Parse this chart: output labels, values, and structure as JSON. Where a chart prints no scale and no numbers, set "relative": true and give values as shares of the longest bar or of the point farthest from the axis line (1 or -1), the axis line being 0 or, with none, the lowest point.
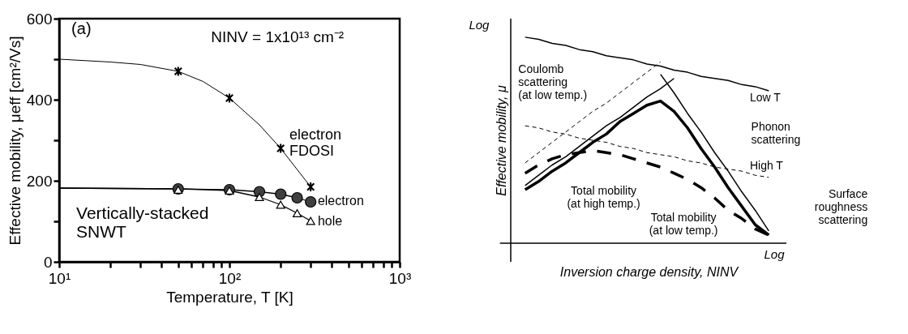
{
  "chart_data": [
    {
      "type": "line",
      "xlabel": "Temperature, T [K]",
      "ylabel": "Effective mobility, μeff [cm²/Vs]",
      "log": "x",
      "xlim": [
        10,
        1000
      ],
      "ylim": [
        0,
        600
      ],
      "xticks": [
        {
          "value": 10,
          "label": "10¹"
        },
        {
          "value": 20,
          "label": null
        },
        {
          "value": 30,
          "label": null
        },
        {
          "value": 40,
          "label": null
        },
        {
          "value": 50,
          "label": null
        },
        {
          "value": 60,
          "label": null
        },
        {
          "value": 70,
          "label": null
        },
        {
          "value": 80,
          "label": null
        },
        {
          "value": 90,
          "label": null
        },
        {
          "value": 100,
          "label": "10²"
        },
        {
          "value": 200,
          "label": null
        },
        {
          "value": 300,
          "label": null
        },
        {
          "value": 400,
          "label": null
        },
        {
          "value": 500,
          "label": null
        },
        {
          "value": 600,
          "label": null
        },
        {
          "value": 700,
          "label": null
        },
        {
          "value": 800,
          "label": null
        },
        {
          "value": 900,
          "label": null
        },
        {
          "value": 1000,
          "label": "10³"
        }
      ],
      "yticks": [
        0,
        {
          "value": 100,
          "label": null
        },
        200,
        {
          "value": 300,
          "label": null
        },
        400,
        {
          "value": 500,
          "label": null
        },
        600
      ],
      "series": [
        {
          "type": "line",
          "color": "#000000",
          "x": [
            10,
            20,
            30,
            50,
            70,
            100,
            150,
            200,
            300
          ],
          "values": [
            500,
            493,
            487,
            470,
            445,
            404,
            338,
            280,
            185
          ]
        },
        {
          "type": "line",
          "color": "#000000",
          "x": [
            10,
            50,
            100,
            150,
            200,
            250,
            300
          ],
          "values": [
            182,
            180,
            178,
            173,
            167,
            158,
            148
          ]
        },
        {
          "type": "line",
          "color": "#000000",
          "x": [
            10,
            50,
            100,
            150,
            200,
            250,
            300
          ],
          "values": [
            182,
            180,
            176,
            160,
            141,
            120,
            101
          ]
        },
        {
          "type": "scatter",
          "marker": "cross",
          "color": "#000000",
          "x": [
            50,
            100,
            200,
            300
          ],
          "values": [
            470,
            404,
            280,
            185
          ]
        },
        {
          "type": "scatter",
          "marker": "circle",
          "color": "#404040",
          "x": [
            50,
            100,
            150,
            200,
            250,
            300
          ],
          "values": [
            180,
            178,
            173,
            167,
            158,
            148
          ]
        },
        {
          "type": "scatter",
          "marker": "triangle",
          "color": "#ffffff",
          "x": [
            50,
            100,
            150,
            200,
            250,
            300
          ],
          "values": [
            178,
            176,
            160,
            141,
            120,
            101
          ]
        }
      ],
      "annotations": [
        "(a)",
        "NINV = 1x10¹³ cm⁻²",
        "electron\nFDOSI",
        "electron",
        "hole",
        "Vertically-stacked\nSNWT"
      ]
    },
    {
      "type": "line",
      "relative": true,
      "tick_labels": false,
      "xlabel": "Inversion charge density, NINV",
      "ylabel": "Effective mobility, μ",
      "categories": [
        null,
        null,
        null,
        null,
        null,
        null,
        null,
        null,
        null,
        null,
        null,
        null,
        null,
        null,
        null,
        null,
        null,
        null,
        null
      ],
      "series": [
        {
          "color": "#000000",
          "line_style": "solid",
          "values": [
            1.0,
            0.99,
            0.97,
            0.96,
            0.94,
            0.93,
            0.91,
            0.9,
            0.89,
            0.87,
            0.86,
            0.84,
            0.83,
            0.81,
            0.8,
            0.79,
            0.77,
            0.76,
            0.74
          ]
        },
        {
          "color": "#000000",
          "line_style": "dashed",
          "values": [
            0.57,
            0.56,
            0.54,
            0.53,
            0.51,
            0.5,
            0.49,
            0.47,
            0.46,
            0.44,
            0.43,
            0.42,
            0.4,
            0.39,
            0.37,
            0.36,
            0.35,
            0.33,
            0.32
          ]
        },
        {
          "color": "#000000",
          "line_style": "dashed",
          "values": [
            0.39,
            0.44,
            0.49,
            0.54,
            0.59,
            0.64,
            0.68,
            0.73,
            0.78,
            0.83,
            0.88,
            null,
            null,
            null,
            null,
            null,
            null,
            null,
            null
          ]
        },
        {
          "color": "#000000",
          "line_style": "solid",
          "values": [
            0.28,
            0.33,
            0.38,
            0.42,
            0.47,
            0.52,
            0.57,
            0.61,
            0.66,
            0.71,
            0.75,
            0.8,
            null,
            null,
            null,
            null,
            null,
            null,
            null
          ]
        },
        {
          "color": "#000000",
          "line_style": "solid",
          "values": [
            null,
            null,
            null,
            null,
            null,
            null,
            null,
            null,
            null,
            null,
            0.82,
            0.73,
            0.63,
            0.54,
            0.44,
            0.35,
            0.25,
            0.16,
            0.06
          ]
        },
        {
          "color": "#000000",
          "line_style": "solid",
          "values": [
            0.26,
            0.3,
            0.35,
            0.39,
            0.44,
            0.49,
            0.53,
            0.59,
            0.63,
            0.67,
            0.69,
            0.64,
            0.56,
            0.46,
            0.37,
            0.27,
            0.18,
            0.09,
            0.04
          ]
        },
        {
          "color": "#000000",
          "line_style": "dashed",
          "values": [
            0.34,
            0.38,
            0.41,
            0.43,
            0.44,
            0.45,
            0.44,
            0.43,
            0.41,
            0.39,
            0.37,
            0.34,
            0.31,
            0.27,
            0.22,
            0.16,
            0.12,
            0.07,
            0.04
          ]
        }
      ],
      "annotations": [
        "Log",
        "Log",
        "Coulomb\nscattering\n(at low temp.)",
        "Low T",
        "Phonon\nscattering",
        "High T",
        "Total mobility\n(at high temp.)",
        "Total mobility\n(at low temp.)",
        "Surface\nroughness\nscattering"
      ]
    }
  ]
}
